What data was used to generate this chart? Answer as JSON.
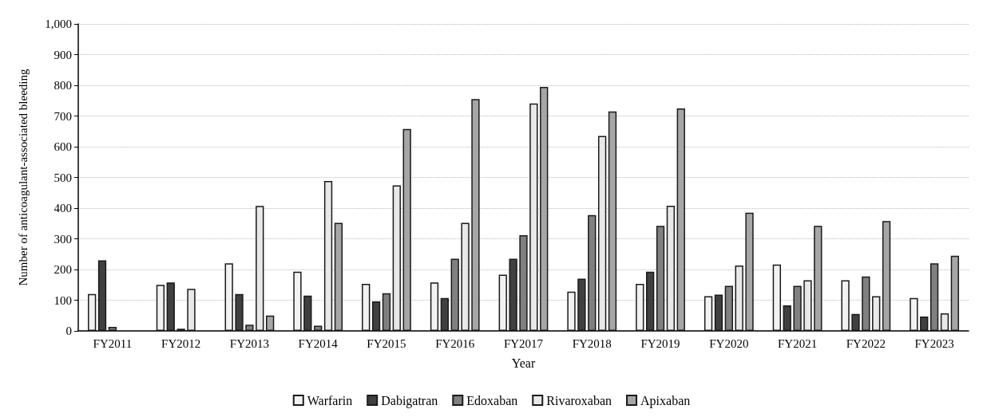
{
  "chart_data": {
    "type": "bar",
    "xlabel": "Year",
    "ylabel": "Number of anticoagulant-associated bleeding",
    "categories": [
      "FY2011",
      "FY2012",
      "FY2013",
      "FY2014",
      "FY2015",
      "FY2016",
      "FY2017",
      "FY2018",
      "FY2019",
      "FY2020",
      "FY2021",
      "FY2022",
      "FY2023"
    ],
    "series": [
      {
        "name": "Warfarin",
        "color": "#f2f2f2",
        "values": [
          120,
          150,
          220,
          193,
          153,
          158,
          183,
          128,
          153,
          113,
          216,
          165,
          107
        ]
      },
      {
        "name": "Dabigatran",
        "color": "#404040",
        "values": [
          230,
          158,
          120,
          115,
          96,
          107,
          235,
          170,
          193,
          118,
          83,
          55,
          47
        ]
      },
      {
        "name": "Edoxaban",
        "color": "#808080",
        "values": [
          13,
          7,
          20,
          17,
          123,
          235,
          312,
          377,
          342,
          147,
          147,
          177,
          220
        ]
      },
      {
        "name": "Rivaroxaban",
        "color": "#e8e8e8",
        "values": [
          null,
          137,
          407,
          488,
          474,
          352,
          741,
          635,
          408,
          213,
          165,
          113,
          57
        ]
      },
      {
        "name": "Apixaban",
        "color": "#a6a6a6",
        "values": [
          null,
          null,
          50,
          352,
          658,
          755,
          795,
          715,
          725,
          385,
          342,
          358,
          245
        ]
      }
    ],
    "ylim": [
      0,
      1000
    ],
    "yticks": [
      0,
      100,
      200,
      300,
      400,
      500,
      600,
      700,
      800,
      900,
      {
        "value": 1000,
        "label": "1,000"
      }
    ],
    "grid": "y",
    "legend": "bottom"
  }
}
